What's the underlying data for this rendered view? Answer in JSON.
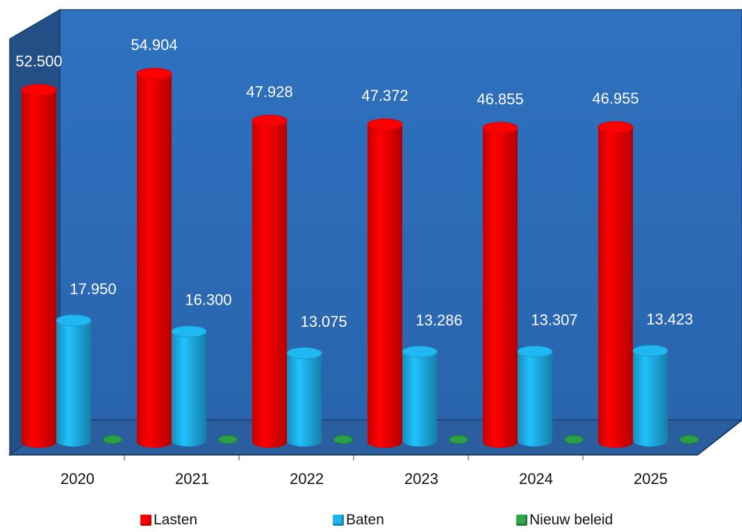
{
  "chart_data": {
    "type": "bar",
    "categories": [
      "2020",
      "2021",
      "2022",
      "2023",
      "2024",
      "2025"
    ],
    "series": [
      {
        "name": "Lasten",
        "values": [
          52.5,
          54.904,
          47.928,
          47.372,
          46.855,
          46.955
        ],
        "labels": [
          "52.500",
          "54.904",
          "47.928",
          "47.372",
          "46.855",
          "46.955"
        ],
        "color": "#ff0000"
      },
      {
        "name": "Baten",
        "values": [
          17.95,
          16.3,
          13.075,
          13.286,
          13.307,
          13.423
        ],
        "labels": [
          "17.950",
          "16.300",
          "13.075",
          "13.286",
          "13.307",
          "13.423"
        ],
        "color": "#1fb4ee"
      },
      {
        "name": "Nieuw beleid",
        "values": [
          0,
          0,
          0,
          0,
          0,
          0
        ],
        "labels": [],
        "color": "#2ea84a"
      }
    ],
    "title": "",
    "xlabel": "",
    "ylabel": "",
    "ylim": [
      0,
      60
    ],
    "grid": false,
    "legend": "bottom",
    "style": "3d-cylinder",
    "background_color": "#2e6db8"
  }
}
